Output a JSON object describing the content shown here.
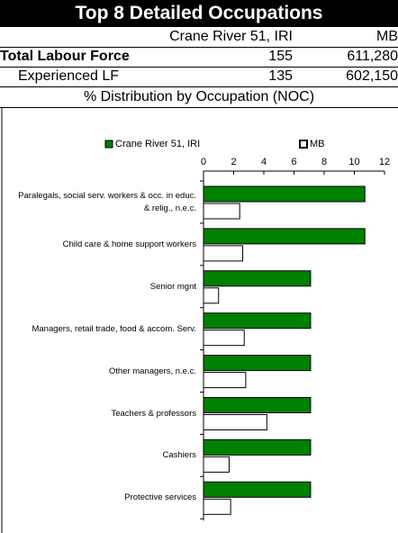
{
  "header": {
    "title": "Top 8 Detailed Occupations"
  },
  "table": {
    "columns": [
      "Crane River 51, IRI",
      "MB"
    ],
    "rows": [
      {
        "label": "Total Labour Force",
        "values": [
          155,
          "611,280"
        ]
      },
      {
        "label": "Experienced LF",
        "values": [
          135,
          "602,150"
        ]
      }
    ]
  },
  "subtitle": "% Distribution by Occupation (NOC)",
  "chart_data": {
    "type": "bar",
    "orientation": "horizontal",
    "categories": [
      "Paralegals, social serv. workers & occ. in educ. & relig., n.e.c.",
      "Child care & home support workers",
      "Senior mgnt",
      "Managers, retail trade, food & accom. Serv.",
      "Other managers, n.e.c.",
      "Teachers & professors",
      "Cashiers",
      "Protective services"
    ],
    "series": [
      {
        "name": "Crane River 51, IRI",
        "color": "#008000",
        "values": [
          10.7,
          10.7,
          7.1,
          7.1,
          7.1,
          7.1,
          7.1,
          7.1
        ]
      },
      {
        "name": "MB",
        "color": "#ffffff",
        "values": [
          2.4,
          2.6,
          1.0,
          2.7,
          2.8,
          4.2,
          1.7,
          1.8
        ]
      }
    ],
    "xlim": [
      0,
      12
    ],
    "xticks": [
      0,
      2,
      4,
      6,
      8,
      10,
      12
    ],
    "legend": "top"
  }
}
